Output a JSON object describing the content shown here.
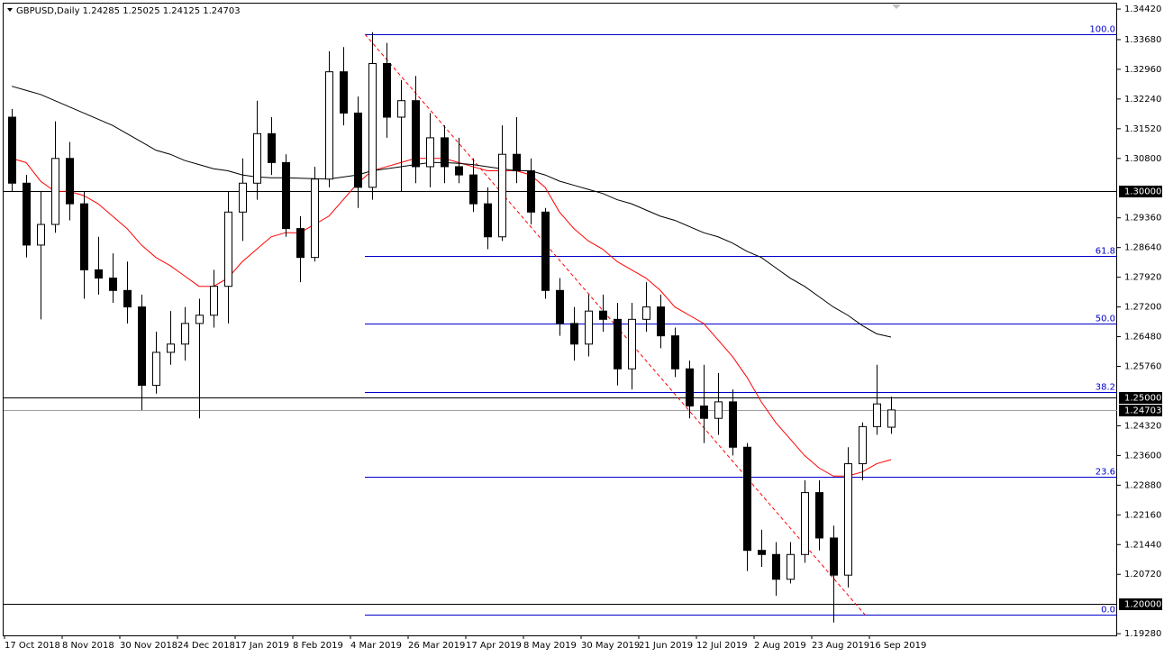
{
  "chart_data": {
    "type": "candlestick",
    "title": "GBPUSD,Daily  1.24285 1.25025 1.24125 1.24703",
    "categories": [
      "17 Oct 2018",
      null,
      null,
      null,
      "8 Nov 2018",
      null,
      null,
      null,
      "30 Nov 2018",
      null,
      null,
      null,
      "24 Dec 2018",
      null,
      null,
      null,
      "17 Jan 2019",
      null,
      null,
      null,
      "8 Feb 2019",
      null,
      null,
      null,
      "4 Mar 2019",
      null,
      null,
      null,
      "26 Mar 2019",
      null,
      null,
      null,
      "17 Apr 2019",
      null,
      null,
      null,
      "8 May 2019",
      null,
      null,
      null,
      "30 May 2019",
      null,
      null,
      null,
      "21 Jun 2019",
      null,
      null,
      null,
      "12 Jul 2019",
      null,
      null,
      null,
      "2 Aug 2019",
      null,
      null,
      null,
      "23 Aug 2019",
      null,
      null,
      null,
      "16 Sep 2019",
      null
    ],
    "open": [
      1.318,
      1.302,
      1.287,
      1.292,
      1.308,
      1.297,
      1.281,
      1.279,
      1.276,
      1.272,
      1.253,
      1.261,
      1.263,
      1.268,
      1.27,
      1.277,
      1.295,
      1.302,
      1.314,
      1.307,
      1.291,
      1.284,
      1.303,
      1.329,
      1.319,
      1.301,
      1.331,
      1.318,
      1.322,
      1.306,
      1.313,
      1.306,
      1.304,
      1.297,
      1.289,
      1.309,
      1.305,
      1.295,
      1.276,
      1.268,
      1.263,
      1.271,
      1.269,
      1.257,
      1.269,
      1.272,
      1.265,
      1.257,
      1.248,
      1.245,
      1.249,
      1.238,
      1.213,
      1.212,
      1.206,
      1.212,
      1.227,
      1.216,
      1.207,
      1.234,
      1.243,
      1.24285
    ],
    "high": [
      1.32,
      1.304,
      1.3,
      1.317,
      1.312,
      1.3,
      1.289,
      1.285,
      1.283,
      1.275,
      1.266,
      1.271,
      1.272,
      1.274,
      1.281,
      1.3,
      1.308,
      1.322,
      1.318,
      1.309,
      1.294,
      1.306,
      1.334,
      1.335,
      1.323,
      1.3386,
      1.336,
      1.327,
      1.328,
      1.319,
      1.316,
      1.313,
      1.308,
      1.301,
      1.316,
      1.318,
      1.308,
      1.296,
      1.279,
      1.272,
      1.275,
      1.275,
      1.273,
      1.273,
      1.278,
      1.275,
      1.267,
      1.259,
      1.258,
      1.256,
      1.252,
      1.239,
      1.218,
      1.215,
      1.215,
      1.23,
      1.23,
      1.219,
      1.238,
      1.244,
      1.258,
      1.25025
    ],
    "low": [
      1.3,
      1.284,
      1.269,
      1.29,
      1.293,
      1.274,
      1.275,
      1.273,
      1.268,
      1.247,
      1.251,
      1.258,
      1.259,
      1.245,
      1.267,
      1.268,
      1.288,
      1.298,
      1.304,
      1.289,
      1.278,
      1.283,
      1.301,
      1.316,
      1.296,
      1.298,
      1.313,
      1.3,
      1.302,
      1.301,
      1.302,
      1.302,
      1.295,
      1.286,
      1.288,
      1.302,
      1.292,
      1.274,
      1.265,
      1.259,
      1.26,
      1.266,
      1.253,
      1.252,
      1.266,
      1.262,
      1.255,
      1.245,
      1.239,
      1.241,
      1.236,
      1.208,
      1.209,
      1.202,
      1.205,
      1.21,
      1.213,
      1.1955,
      1.204,
      1.23,
      1.241,
      1.24125
    ],
    "close": [
      1.302,
      1.287,
      1.292,
      1.308,
      1.297,
      1.281,
      1.279,
      1.276,
      1.272,
      1.253,
      1.261,
      1.263,
      1.268,
      1.27,
      1.277,
      1.295,
      1.302,
      1.314,
      1.307,
      1.291,
      1.284,
      1.303,
      1.329,
      1.319,
      1.301,
      1.331,
      1.318,
      1.322,
      1.306,
      1.313,
      1.306,
      1.304,
      1.297,
      1.289,
      1.309,
      1.305,
      1.295,
      1.276,
      1.268,
      1.263,
      1.271,
      1.269,
      1.257,
      1.269,
      1.272,
      1.265,
      1.257,
      1.248,
      1.245,
      1.249,
      1.238,
      1.213,
      1.212,
      1.206,
      1.212,
      1.227,
      1.216,
      1.207,
      1.234,
      1.243,
      1.2485,
      1.24703
    ],
    "up_color": "#ffffff",
    "down_color": "#000000",
    "moving_averages": [
      {
        "color": "#ff0000",
        "values": [
          1.308,
          1.307,
          1.3025,
          1.3,
          1.3,
          1.299,
          1.297,
          1.294,
          1.291,
          1.287,
          1.284,
          1.282,
          1.2795,
          1.277,
          1.277,
          1.279,
          1.283,
          1.286,
          1.289,
          1.29,
          1.29,
          1.292,
          1.294,
          1.298,
          1.302,
          1.305,
          1.306,
          1.307,
          1.308,
          1.308,
          1.308,
          1.307,
          1.306,
          1.305,
          1.305,
          1.305,
          1.304,
          1.301,
          1.295,
          1.291,
          1.288,
          1.286,
          1.283,
          1.281,
          1.279,
          1.276,
          1.272,
          1.27,
          1.268,
          1.264,
          1.26,
          1.255,
          1.249,
          1.244,
          1.24,
          1.236,
          1.233,
          1.231,
          1.231,
          1.232,
          1.234,
          1.235
        ]
      },
      {
        "color": "#000000",
        "values": [
          1.3255,
          1.3245,
          1.3235,
          1.322,
          1.3205,
          1.319,
          1.3175,
          1.316,
          1.314,
          1.312,
          1.31,
          1.309,
          1.3075,
          1.3065,
          1.3055,
          1.305,
          1.304,
          1.3035,
          1.3033,
          1.3033,
          1.3032,
          1.3031,
          1.303,
          1.3035,
          1.304,
          1.305,
          1.3055,
          1.306,
          1.3065,
          1.307,
          1.307,
          1.3068,
          1.3065,
          1.306,
          1.3055,
          1.305,
          1.305,
          1.304,
          1.3025,
          1.3015,
          1.3005,
          1.2995,
          1.298,
          1.297,
          1.2955,
          1.294,
          1.293,
          1.2915,
          1.29,
          1.289,
          1.2875,
          1.2855,
          1.284,
          1.2815,
          1.279,
          1.277,
          1.2745,
          1.272,
          1.27,
          1.2675,
          1.2655,
          1.2647
        ]
      }
    ],
    "fibonacci": {
      "color": "#0000cc",
      "trend_color": "#ff0000",
      "levels": [
        {
          "label": "100.0",
          "value": 1.3381
        },
        {
          "label": "61.8",
          "value": 1.2843
        },
        {
          "label": "50.0",
          "value": 1.268
        },
        {
          "label": "38.2",
          "value": 1.2514
        },
        {
          "label": "23.6",
          "value": 1.2308
        },
        {
          "label": "0.0",
          "value": 1.1974
        }
      ]
    },
    "hlines": [
      {
        "value": 1.3,
        "label": "1.30000"
      },
      {
        "value": 1.25,
        "label": "1.25000"
      },
      {
        "value": 1.2,
        "label": "1.20000"
      }
    ],
    "current_price": {
      "value": 1.24703,
      "label": "1.24703"
    },
    "ylim": [
      1.1924,
      1.3464
    ],
    "yticks": [
      {
        "value": 1.3442,
        "label": "1.34420"
      },
      {
        "value": 1.3368,
        "label": "1.33680"
      },
      {
        "value": 1.3296,
        "label": "1.32960"
      },
      {
        "value": 1.3224,
        "label": "1.32240"
      },
      {
        "value": 1.3152,
        "label": "1.31520"
      },
      {
        "value": 1.308,
        "label": "1.30800"
      },
      {
        "value": 1.2936,
        "label": "1.29360"
      },
      {
        "value": 1.2864,
        "label": "1.28640"
      },
      {
        "value": 1.2792,
        "label": "1.27920"
      },
      {
        "value": 1.272,
        "label": "1.27200"
      },
      {
        "value": 1.2648,
        "label": "1.26480"
      },
      {
        "value": 1.2576,
        "label": "1.25760"
      },
      {
        "value": 1.2432,
        "label": "1.24320"
      },
      {
        "value": 1.236,
        "label": "1.23600"
      },
      {
        "value": 1.2288,
        "label": "1.22880"
      },
      {
        "value": 1.2216,
        "label": "1.22160"
      },
      {
        "value": 1.2144,
        "label": "1.21440"
      },
      {
        "value": 1.2072,
        "label": "1.20720"
      },
      {
        "value": 1.1928,
        "label": "1.19280"
      }
    ]
  }
}
